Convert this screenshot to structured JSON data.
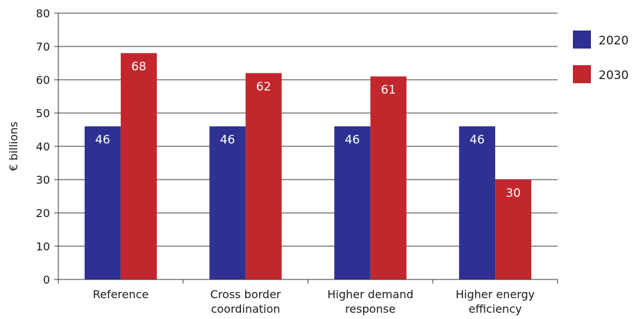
{
  "chart_data": {
    "type": "bar",
    "title": "",
    "xlabel": "",
    "ylabel": "€ billions",
    "ylim": [
      0,
      80
    ],
    "yticks": [
      0,
      10,
      20,
      30,
      40,
      50,
      60,
      70,
      80
    ],
    "grid": true,
    "legend_position": "right",
    "categories": [
      [
        "Reference"
      ],
      [
        "Cross border",
        "coordination"
      ],
      [
        "Higher demand",
        "response"
      ],
      [
        "Higher energy",
        "efficiency"
      ]
    ],
    "series": [
      {
        "name": "2020",
        "color": "#2e3192",
        "values": [
          46,
          46,
          46,
          46
        ]
      },
      {
        "name": "2030",
        "color": "#c1272d",
        "values": [
          68,
          62,
          61,
          30
        ]
      }
    ]
  }
}
